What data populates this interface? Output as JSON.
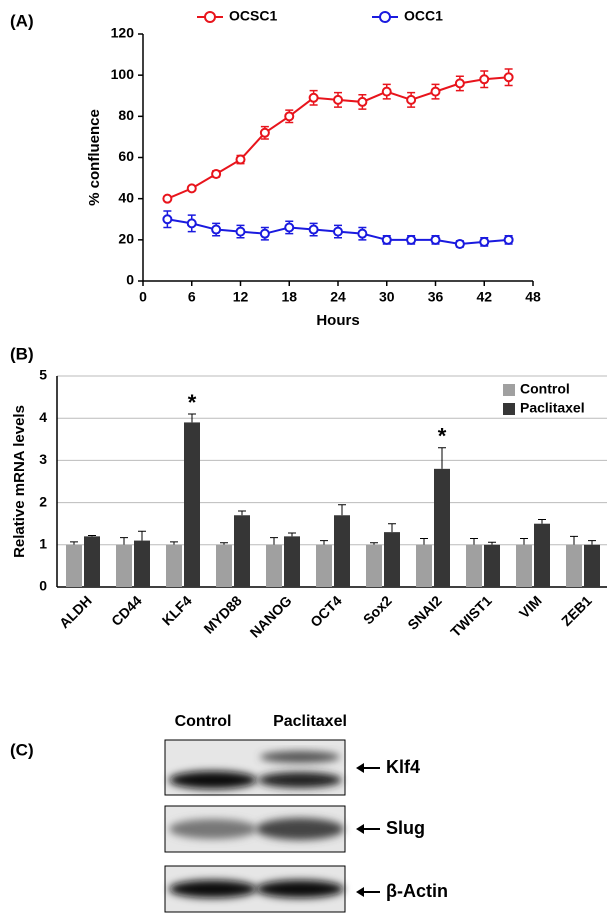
{
  "chart_data": [
    {
      "type": "line",
      "panel": "(A)",
      "x_label": "Hours",
      "y_label": "% confluence",
      "x": [
        3,
        6,
        9,
        12,
        15,
        18,
        21,
        24,
        27,
        30,
        33,
        36,
        39,
        42,
        45
      ],
      "series": [
        {
          "name": "OCSC1",
          "color": "#e8141c",
          "values": [
            40,
            45,
            52,
            59,
            72,
            80,
            89,
            88,
            87,
            92,
            88,
            92,
            96,
            98,
            99
          ],
          "errors": [
            1,
            1,
            1.5,
            2,
            3,
            3,
            3.5,
            3.5,
            3.5,
            3.5,
            3.5,
            3.5,
            3.5,
            4,
            4
          ]
        },
        {
          "name": "OCC1",
          "color": "#1a1adf",
          "values": [
            30,
            28,
            25,
            24,
            23,
            26,
            25,
            24,
            23,
            20,
            20,
            20,
            18,
            19,
            20
          ],
          "errors": [
            4,
            4,
            3,
            3,
            3,
            3,
            3,
            3,
            3,
            2,
            2,
            2,
            1.5,
            2,
            2
          ]
        }
      ],
      "xlim": [
        0,
        48
      ],
      "xticks": [
        0,
        6,
        12,
        18,
        24,
        30,
        36,
        42,
        48
      ],
      "ylim": [
        0,
        120
      ],
      "yticks": [
        0,
        20,
        40,
        60,
        80,
        100,
        120
      ],
      "legend": "top"
    },
    {
      "type": "bar",
      "panel": "(B)",
      "y_label": "Relative mRNA levels",
      "categories": [
        "ALDH",
        "CD44",
        "KLF4",
        "MYD88",
        "NANOG",
        "OCT4",
        "Sox2",
        "SNAI2",
        "TWIST1",
        "VIM",
        "ZEB1"
      ],
      "series": [
        {
          "name": "Control",
          "color": "#a0a0a0",
          "values": [
            1,
            1,
            1,
            1,
            1,
            1,
            1,
            1,
            1,
            1,
            1
          ],
          "errors": [
            0.07,
            0.17,
            0.07,
            0.05,
            0.17,
            0.1,
            0.05,
            0.15,
            0.15,
            0.15,
            0.2
          ]
        },
        {
          "name": "Paclitaxel",
          "color": "#363636",
          "values": [
            1.2,
            1.1,
            3.9,
            1.7,
            1.2,
            1.7,
            1.3,
            2.8,
            1.0,
            1.5,
            1.0
          ],
          "errors": [
            0.02,
            0.22,
            0.2,
            0.1,
            0.08,
            0.25,
            0.2,
            0.5,
            0.06,
            0.1,
            0.1
          ]
        }
      ],
      "ylim": [
        0,
        5
      ],
      "yticks": [
        0,
        1,
        2,
        3,
        4,
        5
      ],
      "grid": true,
      "legend": "upper right",
      "annotations": [
        {
          "text": "*",
          "category": "KLF4",
          "series": "Paclitaxel"
        },
        {
          "text": "*",
          "category": "SNAI2",
          "series": "Paclitaxel"
        }
      ]
    }
  ],
  "blot": {
    "panel": "(C)",
    "columns": [
      "Control",
      "Paclitaxel"
    ],
    "rows": [
      "Klf4",
      "Slug",
      "β-Actin"
    ]
  }
}
